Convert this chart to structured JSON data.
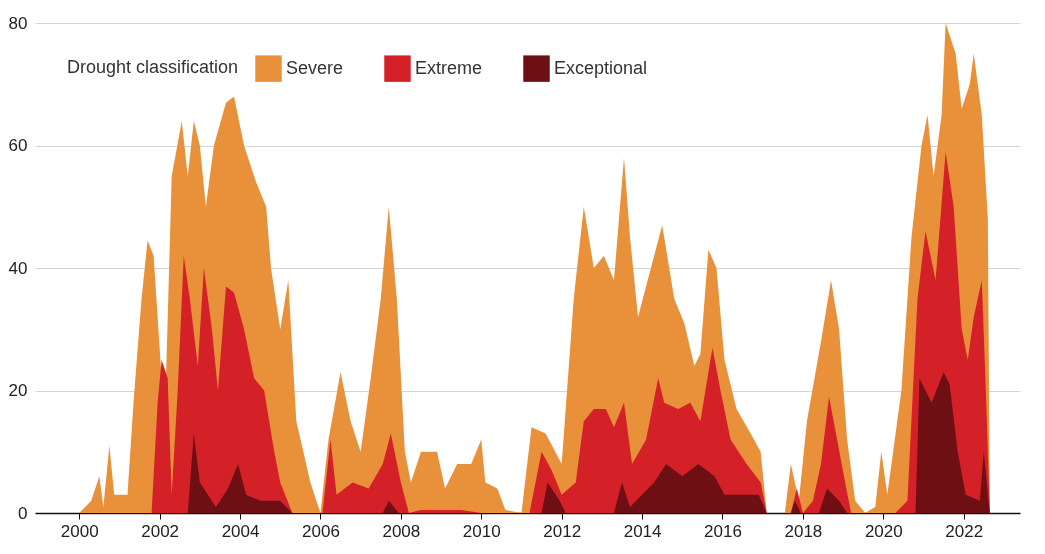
{
  "chart_data": {
    "type": "area",
    "legend_title": "Drought classification",
    "xlim": [
      1998.9,
      2023.4
    ],
    "xticks": [
      2000,
      2002,
      2004,
      2006,
      2008,
      2010,
      2012,
      2014,
      2016,
      2018,
      2020,
      2022
    ],
    "ylim": [
      0,
      80
    ],
    "yticks": [
      0,
      20,
      40,
      60,
      80
    ],
    "grid": "y",
    "legend": "top left",
    "series": [
      {
        "name": "Severe",
        "color": "#e8903a",
        "x": [
          2000.0,
          2000.3,
          2000.5,
          2000.6,
          2000.75,
          2000.87,
          2001.2,
          2001.35,
          2001.55,
          2001.7,
          2001.85,
          2002.05,
          2002.15,
          2002.3,
          2002.55,
          2002.7,
          2002.85,
          2003.0,
          2003.15,
          2003.35,
          2003.65,
          2003.85,
          2004.1,
          2004.4,
          2004.65,
          2004.77,
          2005.0,
          2005.2,
          2005.4,
          2005.75,
          2006.0,
          2006.2,
          2006.5,
          2006.75,
          2007.0,
          2007.25,
          2007.5,
          2007.7,
          2007.9,
          2008.1,
          2008.25,
          2008.5,
          2008.9,
          2009.1,
          2009.4,
          2009.75,
          2010.0,
          2010.1,
          2010.4,
          2010.6,
          2011.0,
          2011.25,
          2011.6,
          2012.0,
          2012.3,
          2012.55,
          2012.8,
          2013.05,
          2013.3,
          2013.55,
          2013.7,
          2013.9,
          2014.3,
          2014.5,
          2014.8,
          2015.05,
          2015.3,
          2015.45,
          2015.65,
          2015.85,
          2016.05,
          2016.35,
          2016.7,
          2016.95,
          2017.1,
          2017.55,
          2017.7,
          2017.9,
          2018.1,
          2018.45,
          2018.7,
          2018.9,
          2019.1,
          2019.3,
          2019.55,
          2019.8,
          2019.95,
          2020.1,
          2020.45,
          2020.7,
          2020.95,
          2021.1,
          2021.25,
          2021.45,
          2021.55,
          2021.8,
          2021.95,
          2022.15,
          2022.25,
          2022.45,
          2022.6,
          2022.65
        ],
        "values": [
          0,
          2,
          6,
          1,
          11,
          3,
          3,
          18,
          35,
          44.5,
          42,
          22,
          20,
          55,
          64,
          55,
          64,
          60,
          50,
          60,
          67,
          68,
          60,
          54,
          50,
          40,
          30,
          38,
          15,
          5,
          0,
          12,
          23,
          15,
          10,
          22,
          35,
          50,
          35,
          10,
          5,
          10,
          10,
          4,
          8,
          8,
          12,
          5,
          4,
          0.5,
          0,
          14,
          13,
          8,
          35,
          50,
          40,
          42,
          38,
          58,
          45,
          32,
          42,
          47,
          35,
          31,
          24,
          26,
          43,
          40,
          25,
          17,
          13,
          10,
          0,
          0,
          8,
          2,
          15,
          28,
          38,
          30,
          12,
          2,
          0,
          1,
          10,
          3,
          20,
          45,
          60,
          65,
          55,
          65,
          80,
          75,
          66,
          70,
          75,
          65,
          48,
          0
        ]
      },
      {
        "name": "Extreme",
        "color": "#d42027",
        "x": [
          2001.8,
          2001.95,
          2002.05,
          2002.2,
          2002.3,
          2002.45,
          2002.6,
          2002.75,
          2002.95,
          2003.1,
          2003.3,
          2003.45,
          2003.65,
          2003.85,
          2004.1,
          2004.35,
          2004.6,
          2004.85,
          2005.0,
          2005.3,
          2006.05,
          2006.25,
          2006.4,
          2006.8,
          2007.2,
          2007.55,
          2007.75,
          2008.0,
          2008.2,
          2008.5,
          2009.5,
          2010.0,
          2011.2,
          2011.5,
          2011.75,
          2012.0,
          2012.35,
          2012.55,
          2012.8,
          2013.1,
          2013.3,
          2013.55,
          2013.75,
          2014.1,
          2014.4,
          2014.55,
          2014.9,
          2015.2,
          2015.45,
          2015.75,
          2015.95,
          2016.2,
          2016.6,
          2016.95,
          2017.1,
          2017.7,
          2017.85,
          2018.0,
          2018.25,
          2018.45,
          2018.65,
          2018.85,
          2019.05,
          2019.2,
          2020.3,
          2020.6,
          2020.85,
          2021.05,
          2021.3,
          2021.55,
          2021.75,
          2021.95,
          2022.1,
          2022.25,
          2022.45,
          2022.55,
          2022.65
        ],
        "values": [
          0,
          18,
          25,
          22,
          3,
          20,
          42,
          35,
          24,
          40,
          30,
          20,
          37,
          36,
          30,
          22,
          20,
          10,
          5,
          0,
          0,
          12,
          3,
          5,
          4,
          8,
          13,
          5,
          0,
          0.5,
          0.5,
          0,
          0,
          10,
          7,
          3,
          5,
          15,
          17,
          17,
          14,
          18,
          8,
          12,
          22,
          18,
          17,
          18,
          15,
          27,
          20,
          12,
          8,
          5,
          0,
          0,
          4,
          0,
          2,
          8,
          19,
          12,
          5,
          0,
          0,
          2,
          35,
          46,
          38,
          59,
          50,
          30,
          25,
          32,
          38,
          20,
          0
        ]
      },
      {
        "name": "Exceptional",
        "color": "#6e0f14",
        "x": [
          2002.7,
          2002.85,
          2003.0,
          2003.2,
          2003.4,
          2003.7,
          2003.95,
          2004.15,
          2004.5,
          2005.0,
          2005.3,
          2007.55,
          2007.7,
          2007.95,
          2011.5,
          2011.65,
          2011.95,
          2012.1,
          2013.3,
          2013.5,
          2013.7,
          2014.3,
          2014.6,
          2015.0,
          2015.4,
          2015.8,
          2016.05,
          2016.9,
          2017.1,
          2017.7,
          2017.8,
          2017.95,
          2018.4,
          2018.6,
          2018.9,
          2019.1,
          2020.8,
          2020.9,
          2021.2,
          2021.5,
          2021.65,
          2021.85,
          2022.05,
          2022.4,
          2022.5,
          2022.6,
          2022.65
        ],
        "values": [
          0,
          13,
          5,
          3,
          1,
          4,
          8,
          3,
          2,
          2,
          0,
          0,
          2,
          0,
          0,
          5,
          2,
          0,
          0,
          5,
          1,
          5,
          8,
          6,
          8,
          6,
          3,
          3,
          0,
          0,
          2,
          0,
          0,
          4,
          2,
          0,
          0,
          22,
          18,
          23,
          21,
          10,
          3,
          2,
          10,
          3,
          0
        ]
      }
    ]
  }
}
